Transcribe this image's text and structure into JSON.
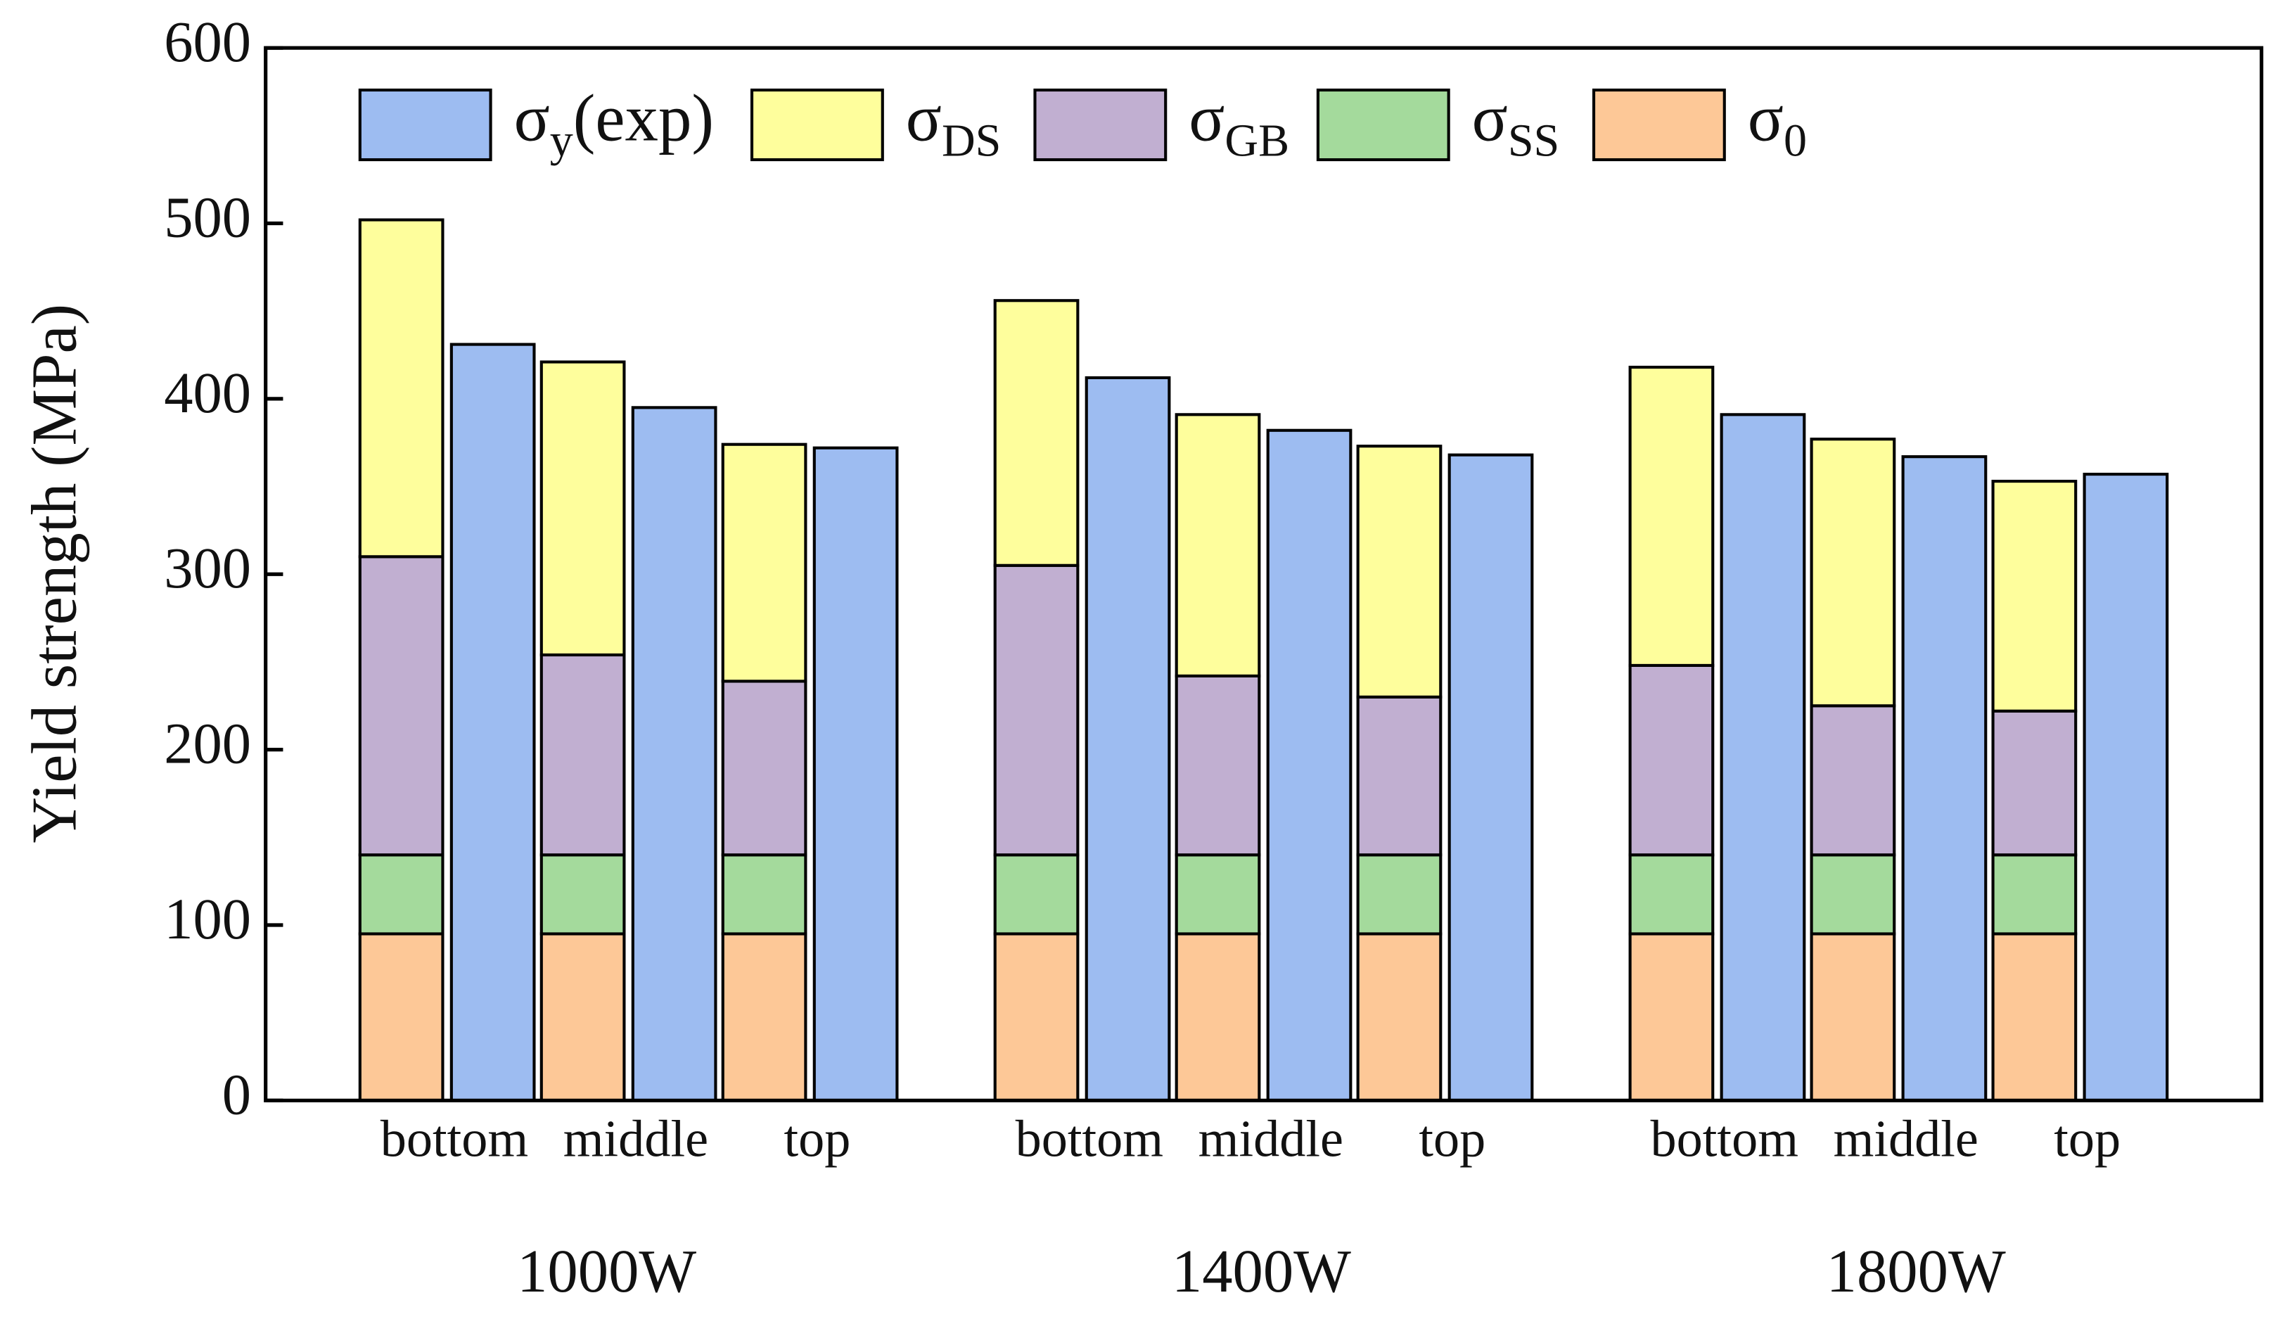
{
  "chart_data": {
    "type": "bar",
    "ylabel": "Yield strength (MPa)",
    "categories": [
      "bottom",
      "middle",
      "top",
      "bottom",
      "middle",
      "top",
      "bottom",
      "middle",
      "top"
    ],
    "groups": [
      "1000W",
      "1400W",
      "1800W"
    ],
    "ylim": [
      0,
      600
    ],
    "yticks": [
      0,
      100,
      200,
      300,
      400,
      500,
      600
    ],
    "series": [
      {
        "name": "σ",
        "name_sub": "y",
        "name_suffix": "(exp)",
        "color": "#9dbcf1",
        "stack": false,
        "values": [
          431,
          395,
          372,
          412,
          382,
          368,
          391,
          367,
          357
        ]
      },
      {
        "name": "σ",
        "name_sub": "DS",
        "color": "#fefe9c",
        "stack": true,
        "values": [
          192,
          167,
          135,
          151,
          149,
          143,
          170,
          152,
          131
        ]
      },
      {
        "name": "σ",
        "name_sub": "GB",
        "color": "#c1afd1",
        "stack": true,
        "values": [
          170,
          114,
          99,
          165,
          102,
          90,
          108,
          85,
          82
        ]
      },
      {
        "name": "σ",
        "name_sub": "SS",
        "color": "#a4da9c",
        "stack": true,
        "values": [
          45,
          45,
          45,
          45,
          45,
          45,
          45,
          45,
          45
        ]
      },
      {
        "name": "σ",
        "name_sub": "0",
        "color": "#fdc897",
        "stack": true,
        "values": [
          95,
          95,
          95,
          95,
          95,
          95,
          95,
          95,
          95
        ]
      }
    ]
  }
}
